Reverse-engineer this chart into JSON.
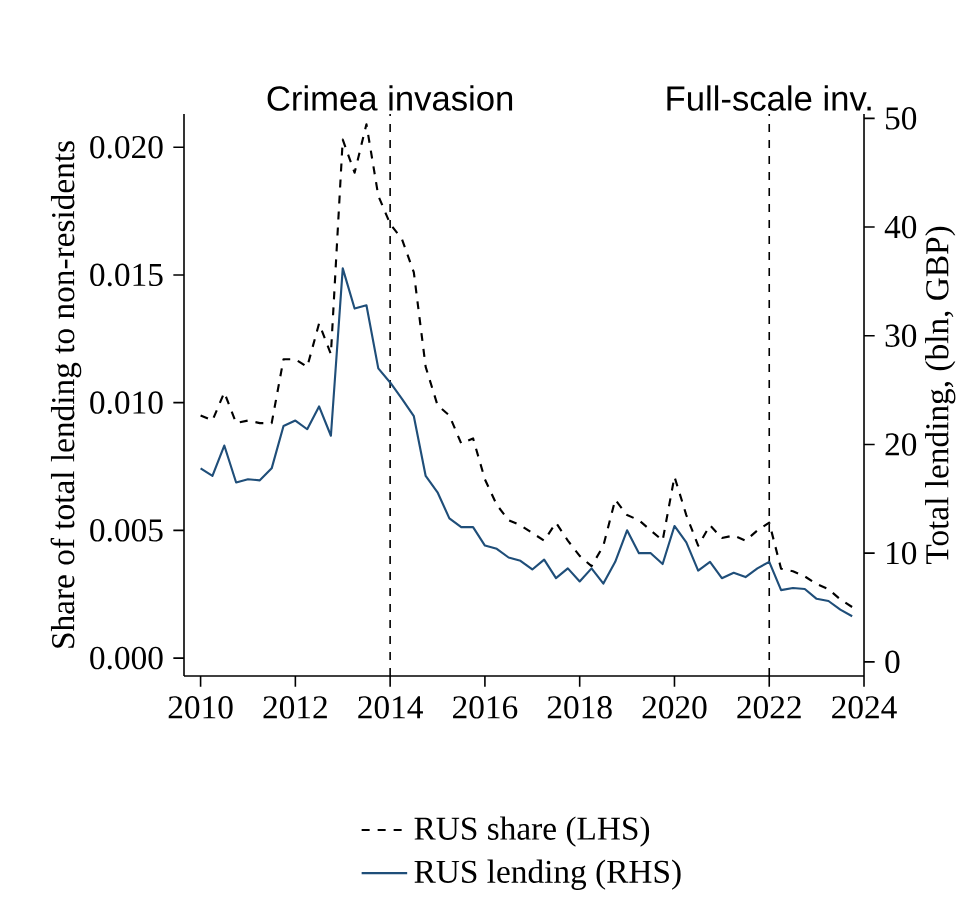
{
  "chart_data": {
    "type": "line",
    "x": [
      2010,
      2010.25,
      2010.5,
      2010.75,
      2011,
      2011.25,
      2011.5,
      2011.75,
      2012,
      2012.25,
      2012.5,
      2012.75,
      2013,
      2013.25,
      2013.5,
      2013.75,
      2014,
      2014.25,
      2014.5,
      2014.75,
      2015,
      2015.25,
      2015.5,
      2015.75,
      2016,
      2016.25,
      2016.5,
      2016.75,
      2017,
      2017.25,
      2017.5,
      2017.75,
      2018,
      2018.25,
      2018.5,
      2018.75,
      2019,
      2019.25,
      2019.5,
      2019.75,
      2020,
      2020.25,
      2020.5,
      2020.75,
      2021,
      2021.25,
      2021.5,
      2021.75,
      2022,
      2022.25,
      2022.5,
      2022.75,
      2023,
      2023.25,
      2023.5,
      2023.75
    ],
    "series": [
      {
        "name": "RUS share (LHS)",
        "color": "#000000",
        "line_style": "dashed",
        "values": [
          0.0095,
          0.0093,
          0.0104,
          0.0092,
          0.0093,
          0.0092,
          0.0092,
          0.0117,
          0.0117,
          0.0114,
          0.0131,
          0.0119,
          0.0203,
          0.019,
          0.0209,
          0.0181,
          0.017,
          0.0164,
          0.0151,
          0.0114,
          0.0099,
          0.0095,
          0.0084,
          0.0086,
          0.007,
          0.006,
          0.0054,
          0.0052,
          0.0049,
          0.0046,
          0.0053,
          0.0046,
          0.004,
          0.0036,
          0.0044,
          0.0062,
          0.0056,
          0.0054,
          0.005,
          0.0046,
          0.0071,
          0.0056,
          0.0044,
          0.0052,
          0.0047,
          0.0048,
          0.0046,
          0.005,
          0.0053,
          0.0035,
          0.0034,
          0.0032,
          0.0029,
          0.0027,
          0.0023,
          0.002
        ]
      },
      {
        "name": "RUS lending (RHS)",
        "color": "#1f4e79",
        "line_style": "solid",
        "axis": "y2",
        "values": [
          17.8,
          17.1,
          19.9,
          16.5,
          16.8,
          16.7,
          17.8,
          21.7,
          22.2,
          21.4,
          23.5,
          20.8,
          36.2,
          32.5,
          32.8,
          27.0,
          25.7,
          24.2,
          22.6,
          17.1,
          15.6,
          13.2,
          12.4,
          12.4,
          10.7,
          10.4,
          9.6,
          9.3,
          8.5,
          9.4,
          7.7,
          8.6,
          7.4,
          8.6,
          7.2,
          9.2,
          12.1,
          10.0,
          10.0,
          9.0,
          12.5,
          11.0,
          8.4,
          9.2,
          7.7,
          8.2,
          7.8,
          8.6,
          9.2,
          6.6,
          6.8,
          6.7,
          5.8,
          5.6,
          4.8,
          4.2
        ]
      }
    ],
    "ylabel": "Share of total lending to non-residents",
    "y2label": "Total lending, (bln, GBP)",
    "xlim": [
      2009.65,
      2024.0
    ],
    "xticks": [
      2010,
      2012,
      2014,
      2016,
      2018,
      2020,
      2022,
      2024
    ],
    "ylim": [
      -0.0007,
      0.0213
    ],
    "yticks": [
      {
        "value": 0,
        "label": "0.000"
      },
      {
        "value": 0.005,
        "label": "0.005"
      },
      {
        "value": 0.01,
        "label": "0.010"
      },
      {
        "value": 0.015,
        "label": "0.015"
      },
      {
        "value": 0.02,
        "label": "0.020"
      }
    ],
    "y2lim": [
      -1.3,
      50.4
    ],
    "y2ticks": [
      0,
      10,
      20,
      30,
      40,
      50
    ],
    "ref_lines": [
      {
        "axis": "x",
        "value": 2014,
        "label": "Crimea invasion",
        "color": "#000000",
        "line_style": "dashed"
      },
      {
        "axis": "x",
        "value": 2022,
        "label": "Full-scale inv.",
        "color": "#000000",
        "line_style": "dashed"
      }
    ],
    "legend": "bottom"
  }
}
